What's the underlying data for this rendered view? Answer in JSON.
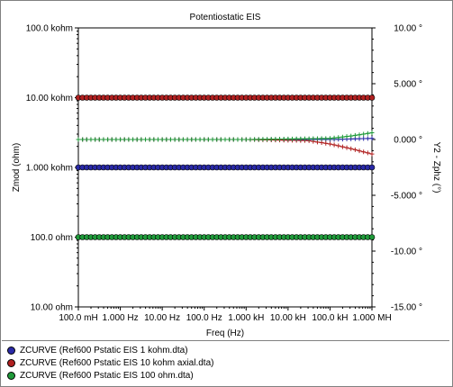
{
  "chart_data": {
    "type": "line",
    "title": "Potentiostatic EIS",
    "xlabel": "Freq (Hz)",
    "ylabel_left": "Zmod (ohm)",
    "ylabel_right": "Y2 - Zphz (°)",
    "x_scale": "log",
    "y_left_scale": "log",
    "xlim": [
      0.1,
      1000000
    ],
    "ylim_left": [
      10,
      100000
    ],
    "ylim_right": [
      -15,
      10
    ],
    "x_tick_labels": [
      "100.0 mH",
      "1.000 Hz",
      "10.00 Hz",
      "100.0 Hz",
      "1.000 kH",
      "10.00 kH",
      "100.0 kH",
      "1.000 MH"
    ],
    "y_left_tick_labels": [
      "100.0 kohm",
      "10.00 kohm",
      "1.000 kohm",
      "100.0 ohm",
      "10.00 ohm"
    ],
    "y_right_tick_labels": [
      "10.00 °",
      "5.000 °",
      "0.000 °",
      "-5.000 °",
      "-10.00 °",
      "-15.00 °"
    ],
    "grid": false,
    "legend_position": "bottom",
    "series": [
      {
        "name": "ZCURVE (Ref600 Pstatic EIS 1 kohm.dta)",
        "color": "#2a2aa8",
        "modulus_ohm": 1000,
        "phase_x": [
          0.1,
          1000,
          100000,
          1000000
        ],
        "phase_deg": [
          0.0,
          0.0,
          0.0,
          0.1
        ]
      },
      {
        "name": "ZCURVE (Ref600 Pstatic EIS 10 kohm axial.dta)",
        "color": "#b02020",
        "modulus_ohm": 10000,
        "phase_x": [
          0.1,
          1000,
          30000,
          100000,
          300000,
          1000000
        ],
        "phase_deg": [
          0.0,
          0.0,
          -0.1,
          -0.4,
          -0.8,
          -1.3
        ]
      },
      {
        "name": "ZCURVE (Ref600 Pstatic EIS 100 ohm.dta)",
        "color": "#1f9a3a",
        "modulus_ohm": 100,
        "phase_x": [
          0.1,
          1000,
          100000,
          300000,
          1000000
        ],
        "phase_deg": [
          0.0,
          0.0,
          0.1,
          0.3,
          0.6
        ]
      }
    ]
  }
}
